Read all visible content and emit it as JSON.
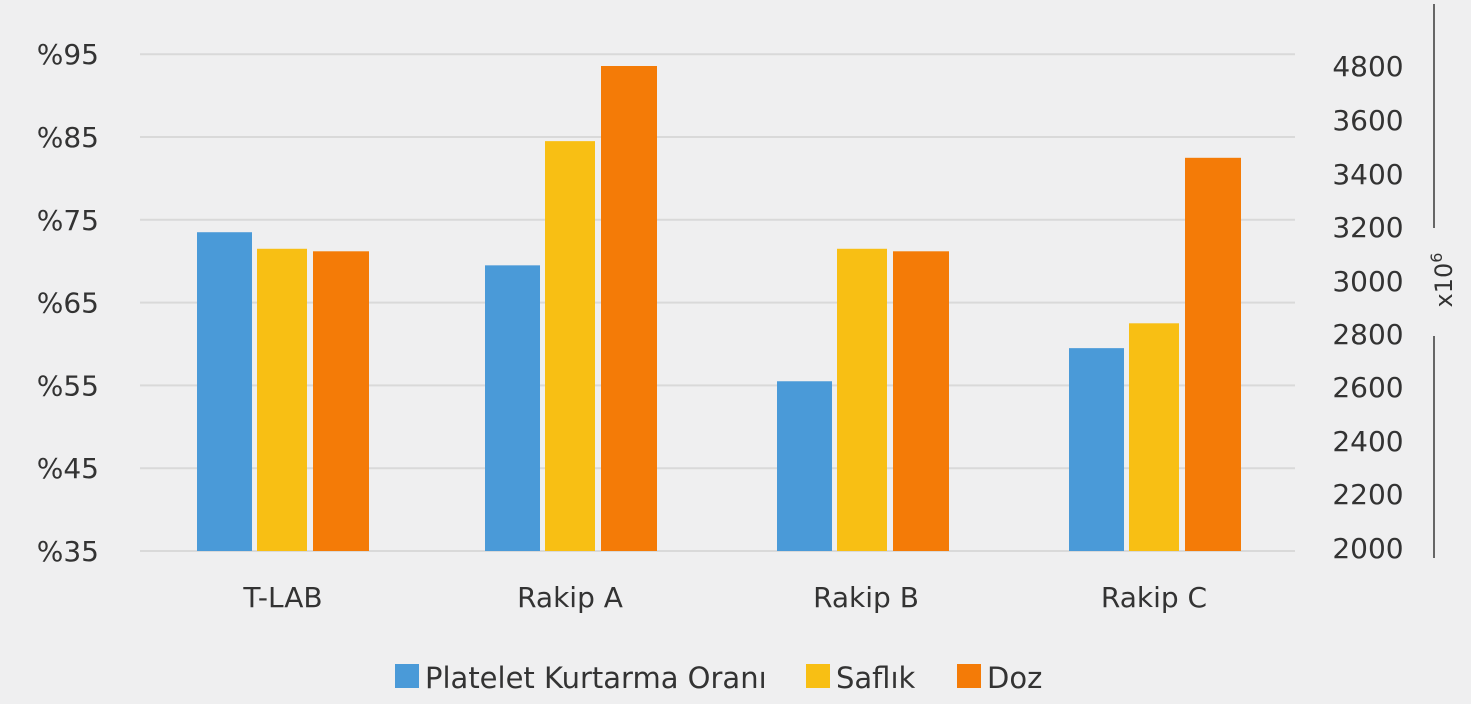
{
  "chart_data": {
    "type": "bar",
    "categories": [
      "T-LAB",
      "Rakip A",
      "Rakip B",
      "Rakip C"
    ],
    "y_left": {
      "ticks": [
        "%35",
        "%45",
        "%55",
        "%65",
        "%75",
        "%85",
        "%95"
      ],
      "tick_values": [
        35,
        45,
        55,
        65,
        75,
        85,
        95
      ],
      "ylim": [
        35,
        95
      ]
    },
    "y_right": {
      "ticks": [
        "2000",
        "2200",
        "2400",
        "2600",
        "2800",
        "3000",
        "3200",
        "3400",
        "3600",
        "4800"
      ],
      "unit": "x10",
      "unit_exp": "6"
    },
    "series": [
      {
        "name": "Platelet Kurtarma Oranı",
        "color": "#4a9ad8",
        "axis": "left",
        "values": [
          73.5,
          69.5,
          55.5,
          59.5
        ]
      },
      {
        "name": "Saflık",
        "color": "#f8bf14",
        "axis": "left",
        "values": [
          71.5,
          84.5,
          71.5,
          62.5
        ]
      },
      {
        "name": "Doz",
        "color": "#f47b07",
        "axis": "right",
        "values": [
          3110,
          4800,
          3110,
          3460
        ]
      }
    ],
    "grid": true,
    "legend_position": "bottom-center"
  }
}
